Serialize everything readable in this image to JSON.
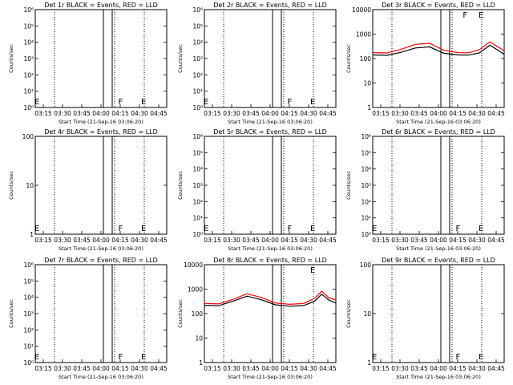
{
  "colors": {
    "events": "#000000",
    "lld": "#ff0000",
    "background": "#ffffff"
  },
  "chart_data": [
    {
      "type": "line",
      "title": "Det 1r BLACK = Events, RED = LLD",
      "ylabel": "Counts/sec",
      "xlabel": "Start Time (21-Sep-16 03:06:20)",
      "yscale": "log",
      "ylim": [
        1,
        1000000
      ],
      "ytick_labels": [
        "10⁶",
        "10⁵",
        "10⁴",
        "10³",
        "10²",
        "10¹",
        "10⁰"
      ],
      "xtick_labels": [
        "03:15",
        "03:30",
        "03:45",
        "04:00",
        "04:15",
        "04:30",
        "04:45"
      ],
      "xlim": [
        0,
        37
      ],
      "dotted_x": [
        3.1,
        21.7,
        40.3
      ],
      "data_gap": [
        0,
        0
      ],
      "marker_labels": [
        "E",
        "F",
        "E"
      ],
      "markers_x": [
        0.5,
        24,
        30.5
      ],
      "series": []
    },
    {
      "type": "line",
      "title": "Det 2r BLACK = Events, RED = LLD",
      "ylabel": "Counts/sec",
      "xlabel": "Start Time (21-Sep-16 03:06:20)",
      "yscale": "log",
      "ylim": [
        1,
        1000000
      ],
      "ytick_labels": [
        "10⁶",
        "10⁵",
        "10⁴",
        "10³",
        "10²",
        "10¹",
        "10⁰"
      ],
      "xtick_labels": [
        "03:15",
        "03:30",
        "03:45",
        "04:00",
        "04:15",
        "04:30",
        "04:45"
      ],
      "xlim": [
        0,
        37
      ],
      "dotted_x": [
        3.1,
        21.7,
        40.3
      ],
      "data_gap": [
        0,
        0
      ],
      "marker_labels": [
        "E",
        "F",
        "E"
      ],
      "markers_x": [
        0.5,
        24,
        30.5
      ],
      "series": []
    },
    {
      "type": "line",
      "title": "Det 3r BLACK = Events, RED = LLD",
      "ylabel": "Counts/sec",
      "xlabel": "Start Time (21-Sep-16 03:06:20)",
      "yscale": "log",
      "ylim": [
        1,
        10000
      ],
      "ytick_labels": [
        "10000",
        "1000",
        "100",
        "10",
        "1"
      ],
      "xtick_labels": [
        "03:15",
        "03:30",
        "03:45",
        "04:00",
        "04:15",
        "04:30",
        "04:45"
      ],
      "xlim": [
        0,
        37
      ],
      "dotted_x": [
        3.1,
        21.7,
        40.3
      ],
      "data_gap": [
        0,
        0
      ],
      "marker_labels": [
        "F",
        "E"
      ],
      "markers_x": [
        26,
        30.5
      ],
      "series": [
        {
          "name": "LLD",
          "color": "#ff0000",
          "x": [
            0,
            4,
            8,
            12,
            16,
            20,
            24,
            27,
            30,
            33,
            37
          ],
          "y": [
            175,
            170,
            240,
            380,
            420,
            220,
            175,
            172,
            230,
            480,
            210
          ]
        },
        {
          "name": "Events",
          "color": "#000000",
          "x": [
            0,
            4,
            8,
            12,
            16,
            20,
            24,
            27,
            30,
            33,
            37
          ],
          "y": [
            140,
            135,
            180,
            270,
            300,
            165,
            140,
            138,
            170,
            350,
            150
          ]
        }
      ]
    },
    {
      "type": "line",
      "title": "Det 4r BLACK = Events, RED = LLD",
      "ylabel": "Counts/sec",
      "xlabel": "Start Time (21-Sep-16 03:06:20)",
      "yscale": "log",
      "ylim": [
        1,
        100
      ],
      "ytick_labels": [
        "100",
        "10",
        "1"
      ],
      "xtick_labels": [
        "03:15",
        "03:30",
        "03:45",
        "04:00",
        "04:15",
        "04:30",
        "04:45"
      ],
      "xlim": [
        0,
        37
      ],
      "dotted_x": [
        3.1,
        21.7,
        40.3
      ],
      "data_gap": [
        0,
        0
      ],
      "marker_labels": [
        "E",
        "F",
        "E"
      ],
      "markers_x": [
        0.5,
        24,
        30.5
      ],
      "series": []
    },
    {
      "type": "line",
      "title": "Det 5r BLACK = Events, RED = LLD",
      "ylabel": "Counts/sec",
      "xlabel": "Start Time (21-Sep-16 03:06:20)",
      "yscale": "log",
      "ylim": [
        1,
        1000000
      ],
      "ytick_labels": [
        "10⁶",
        "10⁵",
        "10⁴",
        "10³",
        "10²",
        "10¹",
        "10⁰"
      ],
      "xtick_labels": [
        "03:15",
        "03:30",
        "03:45",
        "04:00",
        "04:15",
        "04:30",
        "04:45"
      ],
      "xlim": [
        0,
        37
      ],
      "dotted_x": [
        3.1,
        21.7,
        40.3
      ],
      "data_gap": [
        0,
        0
      ],
      "marker_labels": [
        "E",
        "F",
        "E"
      ],
      "markers_x": [
        0.5,
        24,
        30.5
      ],
      "series": []
    },
    {
      "type": "line",
      "title": "Det 6r BLACK = Events, RED = LLD",
      "ylabel": "Counts/sec",
      "xlabel": "Start Time (21-Sep-16 03:06:20)",
      "yscale": "log",
      "ylim": [
        1,
        1000000
      ],
      "ytick_labels": [
        "10⁶",
        "10⁵",
        "10⁴",
        "10³",
        "10²",
        "10¹",
        "10⁰"
      ],
      "xtick_labels": [
        "03:15",
        "03:30",
        "03:45",
        "04:00",
        "04:15",
        "04:30",
        "04:45"
      ],
      "xlim": [
        0,
        37
      ],
      "dotted_x": [
        3.1,
        21.7,
        40.3
      ],
      "data_gap": [
        0,
        0
      ],
      "marker_labels": [
        "E",
        "F",
        "E"
      ],
      "markers_x": [
        0.5,
        24,
        30.5
      ],
      "series": []
    },
    {
      "type": "line",
      "title": "Det 7r BLACK = Events, RED = LLD",
      "ylabel": "Counts/sec",
      "xlabel": "Start Time (21-Sep-16 03:06:20)",
      "yscale": "log",
      "ylim": [
        1,
        1000000
      ],
      "ytick_labels": [
        "10⁶",
        "10⁵",
        "10⁴",
        "10³",
        "10²",
        "10¹",
        "10⁰"
      ],
      "xtick_labels": [
        "03:15",
        "03:30",
        "03:45",
        "04:00",
        "04:15",
        "04:30",
        "04:45"
      ],
      "xlim": [
        0,
        37
      ],
      "dotted_x": [
        3.1,
        21.7,
        40.3
      ],
      "data_gap": [
        0,
        0
      ],
      "marker_labels": [
        "E",
        "F",
        "E"
      ],
      "markers_x": [
        0.5,
        24,
        30.5
      ],
      "series": []
    },
    {
      "type": "line",
      "title": "Det 8r BLACK = Events, RED = LLD",
      "ylabel": "Counts/sec",
      "xlabel": "Start Time (21-Sep-16 03:06:20)",
      "yscale": "log",
      "ylim": [
        1,
        10000
      ],
      "ytick_labels": [
        "10000",
        "1000",
        "100",
        "10",
        "1"
      ],
      "xtick_labels": [
        "03:15",
        "03:30",
        "03:45",
        "04:00",
        "04:15",
        "04:30",
        "04:45"
      ],
      "xlim": [
        0,
        37
      ],
      "dotted_x": [
        3.1,
        21.7,
        40.3
      ],
      "data_gap": [
        0,
        0
      ],
      "marker_labels": [
        "E"
      ],
      "markers_x": [
        30.5
      ],
      "series": [
        {
          "name": "LLD",
          "color": "#ff0000",
          "x": [
            0,
            4,
            8,
            12,
            16,
            20,
            24,
            28,
            31,
            33,
            35,
            37
          ],
          "y": [
            260,
            250,
            380,
            650,
            460,
            270,
            240,
            260,
            420,
            820,
            450,
            360
          ]
        },
        {
          "name": "Events",
          "color": "#000000",
          "x": [
            0,
            4,
            8,
            12,
            16,
            20,
            24,
            28,
            31,
            33,
            35,
            37
          ],
          "y": [
            220,
            210,
            320,
            520,
            370,
            230,
            200,
            215,
            320,
            620,
            360,
            270
          ]
        }
      ]
    },
    {
      "type": "line",
      "title": "Det 9r BLACK = Events, RED = LLD",
      "ylabel": "Counts/sec",
      "xlabel": "Start Time (21-Sep-16 03:06:20)",
      "yscale": "log",
      "ylim": [
        1,
        100
      ],
      "ytick_labels": [
        "100",
        "10",
        "1"
      ],
      "xtick_labels": [
        "03:15",
        "03:30",
        "03:45",
        "04:00",
        "04:15",
        "04:30",
        "04:45"
      ],
      "xlim": [
        0,
        37
      ],
      "dotted_x": [
        3.1,
        21.7,
        40.3
      ],
      "data_gap": [
        0,
        0
      ],
      "marker_labels": [
        "E",
        "F",
        "E"
      ],
      "markers_x": [
        0.5,
        24,
        30.5
      ],
      "series": []
    }
  ]
}
